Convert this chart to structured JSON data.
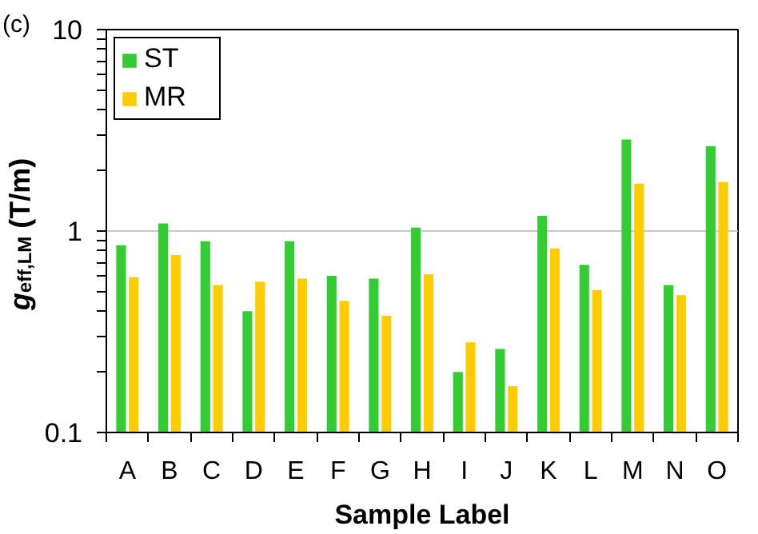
{
  "chart_data": {
    "type": "bar",
    "title": "(c)",
    "xlabel": "Sample Label",
    "ylabel": "g$_{eff,LM}$ (T/m)",
    "categories": [
      "A",
      "B",
      "C",
      "D",
      "E",
      "F",
      "G",
      "H",
      "I",
      "J",
      "K",
      "L",
      "M",
      "N",
      "O"
    ],
    "series": [
      {
        "name": "ST",
        "color": "#33cc33",
        "values": [
          0.85,
          1.09,
          0.89,
          0.4,
          0.89,
          0.6,
          0.58,
          1.04,
          0.2,
          0.26,
          1.19,
          0.68,
          2.85,
          0.54,
          2.64
        ]
      },
      {
        "name": "MR",
        "color": "#ffcc00",
        "values": [
          0.59,
          0.76,
          0.54,
          0.56,
          0.58,
          0.45,
          0.38,
          0.61,
          0.28,
          0.17,
          0.82,
          0.51,
          1.72,
          0.48,
          1.75
        ]
      }
    ],
    "log": true,
    "ylim": [
      0.1,
      10
    ],
    "yticks": [
      0.1,
      {
        "value": 0.2,
        "label": null
      },
      {
        "value": 0.3,
        "label": null
      },
      {
        "value": 0.4,
        "label": null
      },
      {
        "value": 0.5,
        "label": null
      },
      {
        "value": 0.6,
        "label": null
      },
      {
        "value": 0.7,
        "label": null
      },
      {
        "value": 0.8,
        "label": null
      },
      {
        "value": 0.9,
        "label": null
      },
      1,
      {
        "value": 2,
        "label": null
      },
      {
        "value": 3,
        "label": null
      },
      {
        "value": 4,
        "label": null
      },
      {
        "value": 5,
        "label": null
      },
      {
        "value": 6,
        "label": null
      },
      {
        "value": 7,
        "label": null
      },
      {
        "value": 8,
        "label": null
      },
      {
        "value": 9,
        "label": null
      },
      10
    ],
    "grid": "y",
    "legend": "top left"
  }
}
